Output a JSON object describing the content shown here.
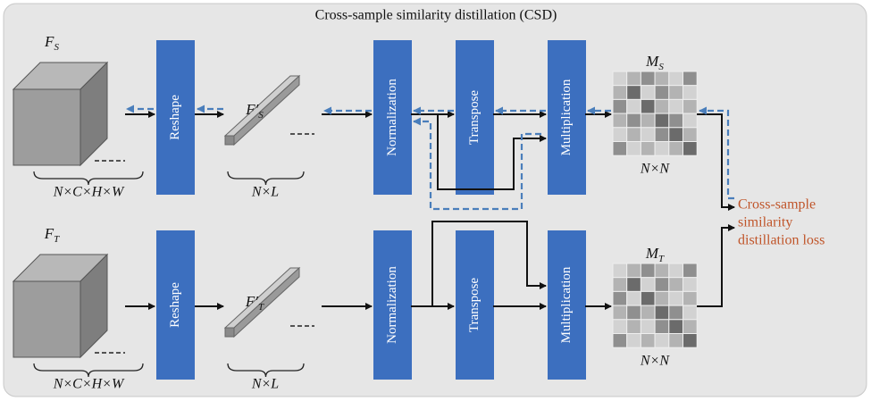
{
  "title": "Cross-sample similarity distillation (CSD)",
  "rows": [
    {
      "feature": {
        "text": "F",
        "sub": "S"
      },
      "feature_dims": "N×C×H×W",
      "reshape": "Reshape",
      "flat": {
        "text": "F′",
        "sub": "S"
      },
      "flat_dims": "N×L",
      "normalization": "Normalization",
      "transpose": "Transpose",
      "multiplication": "Multiplication",
      "matrix": {
        "text": "M",
        "sub": "S"
      },
      "matrix_dims": "N×N"
    },
    {
      "feature": {
        "text": "F",
        "sub": "T"
      },
      "feature_dims": "N×C×H×W",
      "reshape": "Reshape",
      "flat": {
        "text": "F′",
        "sub": "T"
      },
      "flat_dims": "N×L",
      "normalization": "Normalization",
      "transpose": "Transpose",
      "multiplication": "Multiplication",
      "matrix": {
        "text": "M",
        "sub": "T"
      },
      "matrix_dims": "N×N"
    }
  ],
  "loss": [
    "Cross-sample",
    "similarity",
    "distillation loss"
  ]
}
